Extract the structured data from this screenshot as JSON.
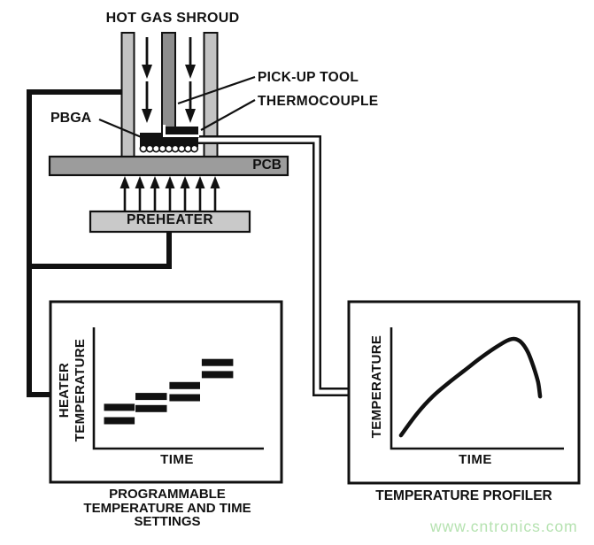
{
  "diagram": {
    "title": "HOT GAS SHROUD",
    "labels": {
      "pbga": "PBGA",
      "pickup_tool": "PICK-UP TOOL",
      "thermocouple": "THERMOCOUPLE",
      "pcb": "PCB",
      "preheater": "PREHEATER"
    }
  },
  "left_chart": {
    "ylabel_line1": "HEATER",
    "ylabel_line2": "TEMPERATURE",
    "xlabel": "TIME",
    "caption_line1": "PROGRAMMABLE",
    "caption_line2": "TEMPERATURE AND TIME",
    "caption_line3": "SETTINGS"
  },
  "right_chart": {
    "ylabel": "TEMPERATURE",
    "xlabel": "TIME",
    "caption": "TEMPERATURE PROFILER"
  },
  "watermark": {
    "text": "www.cntronics.com",
    "color": "#b5e2b0"
  },
  "colors": {
    "line": "#111111",
    "tube_light": "#c3c3c3",
    "tube_dark": "#8d8d8d",
    "pcb_fill": "#9c9c9c",
    "preheater_fill": "#c9c9c9",
    "background": "#ffffff"
  },
  "chart_data": [
    {
      "type": "bar",
      "title": "PROGRAMMABLE TEMPERATURE AND TIME SETTINGS",
      "xlabel": "TIME",
      "ylabel": "HEATER TEMPERATURE",
      "note": "qualitative stepped heater set-points; axes unlabeled, values in % of axis range; each step shows an upper and lower set-point bar",
      "steps": [
        {
          "time_start": 6,
          "time_end": 24,
          "temp_high": 34,
          "temp_low": 23
        },
        {
          "time_start": 24.5,
          "time_end": 43,
          "temp_high": 43,
          "temp_low": 33
        },
        {
          "time_start": 44.5,
          "time_end": 62.5,
          "temp_high": 52,
          "temp_low": 42
        },
        {
          "time_start": 63.5,
          "time_end": 82,
          "temp_high": 71,
          "temp_low": 61
        }
      ]
    },
    {
      "type": "line",
      "title": "TEMPERATURE PROFILER",
      "xlabel": "TIME",
      "ylabel": "TEMPERATURE",
      "note": "qualitative reflow profile; axes unlabeled, points in % of axis range",
      "points": [
        [
          5.6,
          10.9
        ],
        [
          15,
          29
        ],
        [
          24,
          43
        ],
        [
          33,
          54
        ],
        [
          42,
          64
        ],
        [
          51,
          74
        ],
        [
          60,
          83
        ],
        [
          67,
          89
        ],
        [
          71,
          90.5
        ],
        [
          75,
          88
        ],
        [
          79,
          80
        ],
        [
          82.5,
          67
        ],
        [
          85,
          55
        ],
        [
          86.2,
          43
        ]
      ]
    }
  ]
}
